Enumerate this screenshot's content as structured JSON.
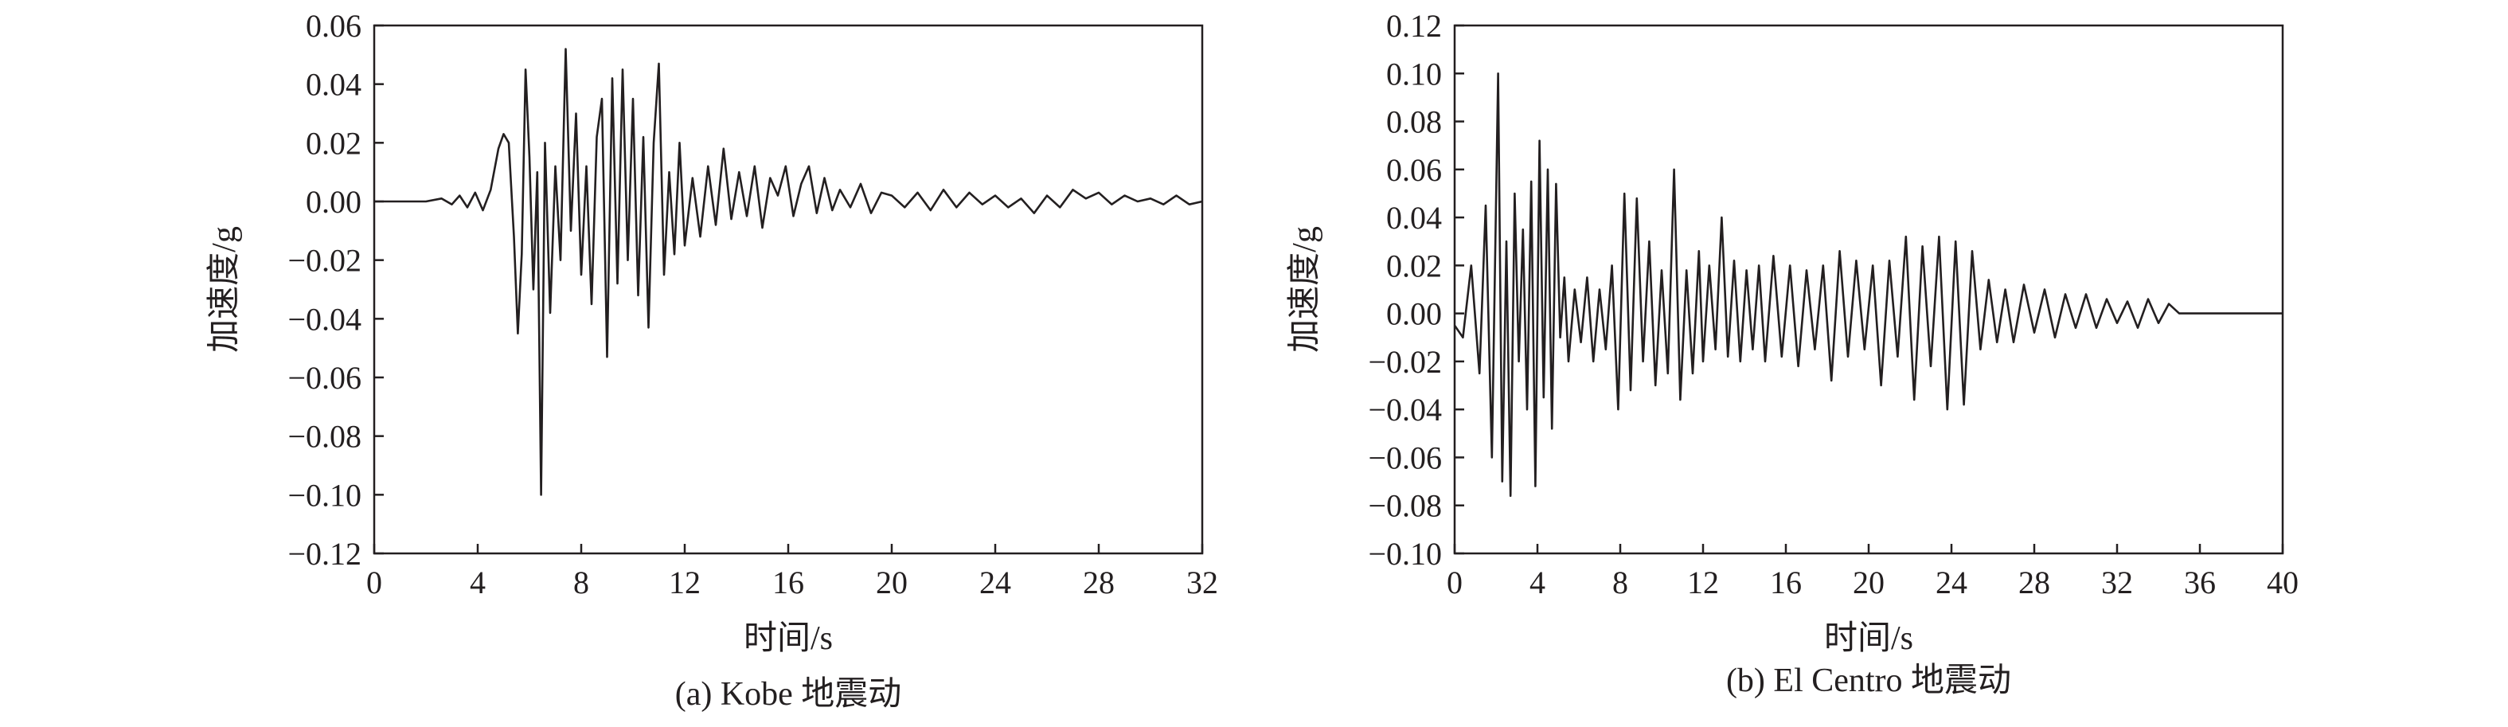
{
  "chart_data": [
    {
      "type": "line",
      "title": "",
      "caption": "(a) Kobe 地震动",
      "xlabel": "时间/s",
      "ylabel": "加速度/g",
      "xlim": [
        0,
        32
      ],
      "ylim": [
        -0.12,
        0.06
      ],
      "xticks": [
        "0",
        "4",
        "8",
        "12",
        "16",
        "20",
        "24",
        "28",
        "32"
      ],
      "yticks": [
        "0.06",
        "0.04",
        "0.02",
        "0.00",
        "−0.02",
        "−0.04",
        "−0.06",
        "−0.08",
        "−0.10",
        "−0.12"
      ],
      "grid": false,
      "series": [
        {
          "x": [
            0,
            1,
            2,
            2.6,
            3,
            3.3,
            3.6,
            3.9,
            4.2,
            4.5,
            4.8,
            5.0,
            5.2,
            5.4,
            5.55,
            5.7,
            5.85,
            6.0,
            6.15,
            6.3,
            6.45,
            6.6,
            6.8,
            7.0,
            7.2,
            7.4,
            7.6,
            7.8,
            8.0,
            8.2,
            8.4,
            8.6,
            8.8,
            9.0,
            9.2,
            9.4,
            9.6,
            9.8,
            10.0,
            10.2,
            10.4,
            10.6,
            10.8,
            11.0,
            11.2,
            11.4,
            11.6,
            11.8,
            12.0,
            12.3,
            12.6,
            12.9,
            13.2,
            13.5,
            13.8,
            14.1,
            14.4,
            14.7,
            15.0,
            15.3,
            15.6,
            15.9,
            16.2,
            16.5,
            16.8,
            17.1,
            17.4,
            17.7,
            18.0,
            18.4,
            18.8,
            19.2,
            19.6,
            20.0,
            20.5,
            21.0,
            21.5,
            22.0,
            22.5,
            23.0,
            23.5,
            24.0,
            24.5,
            25.0,
            25.5,
            26.0,
            26.5,
            27.0,
            27.5,
            28.0,
            28.5,
            29.0,
            29.5,
            30.0,
            30.5,
            31.0,
            31.5,
            32.0
          ],
          "y": [
            0.0,
            0.0,
            0.0,
            0.001,
            -0.001,
            0.002,
            -0.002,
            0.003,
            -0.003,
            0.004,
            0.018,
            0.023,
            0.02,
            -0.012,
            -0.045,
            -0.018,
            0.045,
            0.015,
            -0.03,
            0.01,
            -0.1,
            0.02,
            -0.038,
            0.012,
            -0.02,
            0.052,
            -0.01,
            0.03,
            -0.025,
            0.012,
            -0.035,
            0.022,
            0.035,
            -0.053,
            0.042,
            -0.028,
            0.045,
            -0.02,
            0.035,
            -0.032,
            0.022,
            -0.043,
            0.02,
            0.047,
            -0.025,
            0.01,
            -0.018,
            0.02,
            -0.015,
            0.008,
            -0.012,
            0.012,
            -0.008,
            0.018,
            -0.006,
            0.01,
            -0.005,
            0.012,
            -0.009,
            0.008,
            0.002,
            0.012,
            -0.005,
            0.006,
            0.012,
            -0.004,
            0.008,
            -0.003,
            0.004,
            -0.002,
            0.006,
            -0.004,
            0.003,
            0.002,
            -0.002,
            0.003,
            -0.003,
            0.004,
            -0.002,
            0.003,
            -0.001,
            0.002,
            -0.002,
            0.001,
            -0.004,
            0.002,
            -0.002,
            0.004,
            0.001,
            0.003,
            -0.001,
            0.002,
            0.0,
            0.001,
            -0.001,
            0.002,
            -0.001,
            0.0
          ]
        }
      ]
    },
    {
      "type": "line",
      "title": "",
      "caption": "(b) El Centro 地震动",
      "xlabel": "时间/s",
      "ylabel": "加速度/g",
      "xlim": [
        0,
        40
      ],
      "ylim": [
        -0.1,
        0.12
      ],
      "xticks": [
        "0",
        "4",
        "8",
        "12",
        "16",
        "20",
        "24",
        "28",
        "32",
        "36",
        "40"
      ],
      "yticks": [
        "0.12",
        "0.10",
        "0.08",
        "0.06",
        "0.04",
        "0.02",
        "0.00",
        "−0.02",
        "−0.04",
        "−0.06",
        "−0.08",
        "−0.10"
      ],
      "grid": false,
      "series": [
        {
          "x": [
            0,
            0.4,
            0.8,
            1.2,
            1.5,
            1.8,
            2.1,
            2.3,
            2.5,
            2.7,
            2.9,
            3.1,
            3.3,
            3.5,
            3.7,
            3.9,
            4.1,
            4.3,
            4.5,
            4.7,
            4.9,
            5.1,
            5.3,
            5.5,
            5.8,
            6.1,
            6.4,
            6.7,
            7.0,
            7.3,
            7.6,
            7.9,
            8.2,
            8.5,
            8.8,
            9.1,
            9.4,
            9.7,
            10.0,
            10.3,
            10.6,
            10.9,
            11.2,
            11.5,
            11.8,
            12.0,
            12.3,
            12.6,
            12.9,
            13.2,
            13.5,
            13.8,
            14.1,
            14.4,
            14.7,
            15.0,
            15.4,
            15.8,
            16.2,
            16.6,
            17.0,
            17.4,
            17.8,
            18.2,
            18.6,
            19.0,
            19.4,
            19.8,
            20.2,
            20.6,
            21.0,
            21.4,
            21.8,
            22.2,
            22.6,
            23.0,
            23.4,
            23.8,
            24.2,
            24.6,
            25.0,
            25.4,
            25.8,
            26.2,
            26.6,
            27.0,
            27.5,
            28.0,
            28.5,
            29.0,
            29.5,
            30.0,
            30.5,
            31.0,
            31.5,
            32.0,
            32.5,
            33.0,
            33.5,
            34.0,
            34.5,
            35.0,
            35.5,
            36.0,
            38.0,
            40.0
          ],
          "y": [
            -0.005,
            -0.01,
            0.02,
            -0.025,
            0.045,
            -0.06,
            0.1,
            -0.07,
            0.03,
            -0.076,
            0.05,
            -0.02,
            0.035,
            -0.04,
            0.055,
            -0.072,
            0.072,
            -0.035,
            0.06,
            -0.048,
            0.054,
            -0.01,
            0.015,
            -0.02,
            0.01,
            -0.012,
            0.015,
            -0.02,
            0.01,
            -0.015,
            0.02,
            -0.04,
            0.05,
            -0.032,
            0.048,
            -0.02,
            0.03,
            -0.03,
            0.018,
            -0.025,
            0.06,
            -0.036,
            0.018,
            -0.025,
            0.026,
            -0.02,
            0.02,
            -0.015,
            0.04,
            -0.018,
            0.022,
            -0.02,
            0.018,
            -0.015,
            0.02,
            -0.02,
            0.024,
            -0.018,
            0.02,
            -0.022,
            0.018,
            -0.015,
            0.02,
            -0.028,
            0.026,
            -0.018,
            0.022,
            -0.015,
            0.02,
            -0.03,
            0.022,
            -0.018,
            0.032,
            -0.036,
            0.028,
            -0.022,
            0.032,
            -0.04,
            0.03,
            -0.038,
            0.026,
            -0.015,
            0.014,
            -0.012,
            0.01,
            -0.012,
            0.012,
            -0.008,
            0.01,
            -0.01,
            0.008,
            -0.006,
            0.008,
            -0.006,
            0.006,
            -0.004,
            0.005,
            -0.006,
            0.006,
            -0.004,
            0.004,
            0.0,
            0.0,
            0.0,
            0.0,
            0.0
          ]
        }
      ]
    }
  ]
}
